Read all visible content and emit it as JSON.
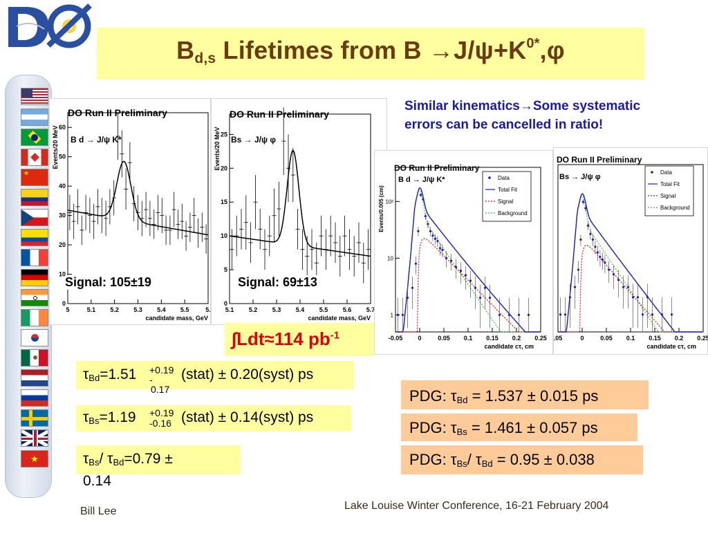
{
  "header": {
    "title_b": "B",
    "title_sub": "d,s",
    "title_mid": " Lifetimes from B ",
    "title_arrow": "→",
    "title_j": "J/",
    "title_psi": "ψ",
    "title_k": "+K",
    "title_sup": "0*",
    "title_end": ",",
    "title_phi": "φ"
  },
  "callout": {
    "line1": "Similar kinematics→Some systematic",
    "line2": "errors  can be cancelled in ratio!"
  },
  "luminosity": {
    "text": "∫Ldt≈114 pb",
    "sup": "-1"
  },
  "measurements": {
    "bd_label": "τ",
    "bd_sub": "Bd",
    "bd_value": "=1.51",
    "bd_err_plus": "+0.19",
    "bd_err_minus_dash": "-",
    "bd_err_minus": "0.17",
    "bd_rest": " (stat) ± 0.20(syst) ps",
    "bs_label": "τ",
    "bs_sub": "Bs",
    "bs_value": "=1.19",
    "bs_err_plus": "+0.19",
    "bs_err_minus": "-0.16",
    "bs_rest": " (stat) ± 0.14(syst) ps",
    "ratio_tau1": "τ",
    "ratio_sub1": "Bs",
    "ratio_slash": "/ ",
    "ratio_tau2": "τ",
    "ratio_sub2": "Bd",
    "ratio_value": "=0.79 ±",
    "ratio_err": "0.14"
  },
  "pdg": {
    "bd_prefix": "PDG: ",
    "bd_tau": "τ",
    "bd_sub": "Bd",
    "bd_value": " = 1.537 ± 0.015 ps",
    "bs_prefix": "PDG: ",
    "bs_tau": "τ",
    "bs_sub": "Bs",
    "bs_value": " = 1.461 ± 0.057 ps",
    "ratio_prefix": "PDG: ",
    "ratio_tau1": "τ",
    "ratio_sub1": "Bs",
    "ratio_slash": "/ ",
    "ratio_tau2": "τ",
    "ratio_sub2": "Bd",
    "ratio_value": " = 0.95 ± 0.038"
  },
  "footer": {
    "author": "Bill Lee",
    "conference": "Lake Louise Winter Conference, 16-21 February 2004"
  },
  "flags": [
    "usa",
    "argentina",
    "brazil",
    "canada",
    "china",
    "colombia",
    "czech-republic",
    "ecuador",
    "france",
    "germany",
    "india",
    "ireland",
    "korea",
    "mexico",
    "netherlands",
    "russia",
    "sweden",
    "uk",
    "vietnam"
  ],
  "chart_data": [
    {
      "type": "scatter",
      "title": "DO  Run II Preliminary",
      "decay_label": "B d → J/ψ K*",
      "xlabel": "candidate mass,  GeV",
      "ylabel": "Events/20 MeV",
      "signal_label": "Signal: 105±19",
      "xlim": [
        5.0,
        5.7
      ],
      "ylim": [
        0,
        65
      ],
      "x_ticks": [
        "5",
        "5.1",
        "5.2",
        "5.3",
        "5.4",
        "5.5",
        "5."
      ],
      "y_ticks": [
        "0",
        "10",
        "20",
        "30",
        "40",
        "50",
        "60"
      ],
      "series": [
        {
          "x": [
            5.01,
            5.03,
            5.05,
            5.07,
            5.09,
            5.11,
            5.13,
            5.15,
            5.17,
            5.19,
            5.21,
            5.23,
            5.25,
            5.27,
            5.29,
            5.31,
            5.33,
            5.35,
            5.37,
            5.39,
            5.41,
            5.43,
            5.45,
            5.47,
            5.49,
            5.51,
            5.53,
            5.55,
            5.57,
            5.59,
            5.61,
            5.63,
            5.65,
            5.67,
            5.69
          ],
          "y": [
            31,
            28,
            33,
            25,
            31,
            30,
            28,
            33,
            30,
            29,
            33,
            36,
            57,
            51,
            39,
            48,
            34,
            31,
            29,
            32,
            29,
            27,
            31,
            30,
            25,
            25,
            32,
            27,
            28,
            23,
            26,
            30,
            24,
            26,
            22
          ],
          "err": [
            6,
            6,
            6,
            5,
            6,
            6,
            6,
            6,
            6,
            6,
            6,
            6,
            8,
            8,
            7,
            7,
            6,
            6,
            6,
            6,
            6,
            5,
            6,
            6,
            5,
            5,
            6,
            5,
            6,
            5,
            5,
            6,
            5,
            5,
            5
          ]
        },
        {
          "name": "fit",
          "model": {
            "a": 31.8,
            "slope": -12,
            "x0": 5.0,
            "amp": 20,
            "mu": 5.28,
            "sigma": 0.035
          }
        }
      ]
    },
    {
      "type": "scatter",
      "title": "DO  Run II Preliminary",
      "decay_label": "Bs → J/ψ φ",
      "xlabel": "candidate mass,  GeV",
      "ylabel": "Events/20 MeV",
      "signal_label": "Signal: 69±13",
      "xlim": [
        5.1,
        5.7
      ],
      "ylim": [
        0,
        28
      ],
      "x_ticks": [
        "5.1",
        "5.2",
        "5.3",
        "5.4",
        "5.5",
        "5.6",
        "5.7"
      ],
      "y_ticks": [
        "0",
        "5",
        "10",
        "15",
        "20",
        "25"
      ],
      "series": [
        {
          "x": [
            5.11,
            5.13,
            5.15,
            5.17,
            5.19,
            5.21,
            5.23,
            5.25,
            5.27,
            5.29,
            5.31,
            5.33,
            5.35,
            5.37,
            5.39,
            5.41,
            5.43,
            5.45,
            5.47,
            5.49,
            5.51,
            5.53,
            5.55,
            5.57,
            5.59,
            5.61,
            5.63,
            5.65,
            5.67,
            5.69
          ],
          "y": [
            8,
            10,
            11,
            12,
            9,
            15,
            11,
            8,
            10,
            13,
            14,
            24,
            20,
            19,
            11,
            8,
            7,
            8,
            6,
            10,
            8,
            10,
            9,
            7,
            10,
            8,
            7,
            9,
            6,
            8
          ],
          "err": [
            3,
            3,
            3,
            4,
            3,
            4,
            3,
            3,
            3,
            4,
            4,
            5,
            5,
            4,
            3,
            3,
            3,
            3,
            3,
            3,
            3,
            3,
            3,
            3,
            3,
            3,
            3,
            3,
            3,
            3
          ]
        },
        {
          "name": "fit",
          "model": {
            "a": 10,
            "slope": -5,
            "x0": 5.1,
            "amp": 14,
            "mu": 5.37,
            "sigma": 0.025
          }
        }
      ]
    },
    {
      "type": "scatter",
      "title": "DO Run II Preliminary",
      "decay_label": "B d → J/ψ K*",
      "xlabel": "candidate cτ,  cm",
      "ylabel": "Events/0.005 (cm)",
      "yscale": "log",
      "xlim": [
        -0.05,
        0.25
      ],
      "ylim": [
        0.5,
        400
      ],
      "x_ticks": [
        "-0.05",
        "0",
        "0.05",
        "0.1",
        "0.15",
        "0.2",
        "0.25"
      ],
      "y_ticks": [
        "1",
        "10",
        "10²"
      ],
      "legend": [
        "Data",
        "Total Fit",
        "Signal",
        "Background"
      ],
      "series": [
        {
          "name": "Data",
          "x": [
            -0.045,
            -0.035,
            -0.025,
            -0.015,
            -0.008,
            -0.003,
            0.002,
            0.007,
            0.012,
            0.017,
            0.022,
            0.027,
            0.032,
            0.037,
            0.042,
            0.047,
            0.055,
            0.065,
            0.075,
            0.085,
            0.095,
            0.105,
            0.115,
            0.125,
            0.135,
            0.145,
            0.165,
            0.185,
            0.205,
            0.225
          ],
          "y": [
            1,
            1,
            2,
            3,
            8,
            30,
            130,
            110,
            55,
            40,
            30,
            25,
            22,
            20,
            15,
            14,
            10,
            9,
            7,
            6,
            5,
            4,
            3,
            2,
            3,
            2,
            1,
            1,
            1,
            1
          ]
        },
        {
          "name": "Total Fit"
        },
        {
          "name": "Signal"
        },
        {
          "name": "Background"
        }
      ]
    },
    {
      "type": "scatter",
      "title": "DO Run II Preliminary",
      "decay_label": "Bs → J/ψ φ",
      "xlabel": "candidate cτ,  cm",
      "xlim": [
        -0.05,
        0.25
      ],
      "x_ticks": [
        ".05",
        "0",
        "0.05",
        "0.1",
        "0.15",
        "0.2",
        "0.25"
      ],
      "legend": [
        "Data",
        "Total Fit",
        "Signal",
        "Background"
      ],
      "series": [
        {
          "name": "Data",
          "x": [
            -0.045,
            -0.035,
            -0.025,
            -0.015,
            -0.008,
            -0.003,
            0.002,
            0.007,
            0.012,
            0.017,
            0.022,
            0.027,
            0.032,
            0.037,
            0.042,
            0.047,
            0.055,
            0.065,
            0.075,
            0.085,
            0.095,
            0.105,
            0.115,
            0.125,
            0.135,
            0.145,
            0.165,
            0.185
          ],
          "y": [
            1,
            1,
            2,
            3,
            6,
            20,
            90,
            70,
            35,
            25,
            20,
            15,
            12,
            10,
            9,
            8,
            6,
            5,
            4,
            3,
            3,
            2,
            2,
            1,
            2,
            1,
            1,
            1
          ]
        },
        {
          "name": "Total Fit"
        },
        {
          "name": "Signal"
        },
        {
          "name": "Background"
        }
      ]
    }
  ]
}
